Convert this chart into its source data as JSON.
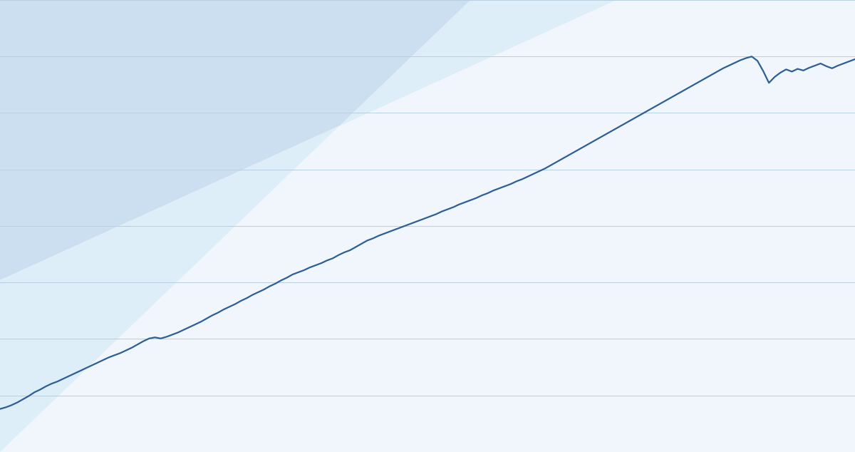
{
  "background_color": "#f0f6fc",
  "upper_triangle_color": "#ccdff0",
  "mid_band_color": "#ddeef8",
  "line_color": "#2d5f96",
  "line_width": 1.6,
  "grid_color": "#b8cfe0",
  "grid_linewidth": 0.7,
  "figsize": [
    12.0,
    6.34
  ],
  "dpi": 100,
  "y_values": [
    100.0,
    100.15,
    100.35,
    100.6,
    100.9,
    101.2,
    101.55,
    101.8,
    102.1,
    102.35,
    102.55,
    102.8,
    103.05,
    103.3,
    103.55,
    103.8,
    104.05,
    104.3,
    104.55,
    104.8,
    105.0,
    105.2,
    105.45,
    105.7,
    106.0,
    106.3,
    106.55,
    106.65,
    106.55,
    106.7,
    106.9,
    107.1,
    107.35,
    107.6,
    107.85,
    108.1,
    108.4,
    108.7,
    108.95,
    109.25,
    109.5,
    109.75,
    110.05,
    110.3,
    110.6,
    110.85,
    111.1,
    111.4,
    111.65,
    111.95,
    112.2,
    112.5,
    112.7,
    112.9,
    113.15,
    113.35,
    113.55,
    113.8,
    114.0,
    114.3,
    114.55,
    114.75,
    115.05,
    115.35,
    115.65,
    115.85,
    116.1,
    116.3,
    116.5,
    116.7,
    116.9,
    117.1,
    117.3,
    117.5,
    117.7,
    117.9,
    118.1,
    118.35,
    118.55,
    118.75,
    119.0,
    119.2,
    119.4,
    119.6,
    119.85,
    120.05,
    120.3,
    120.5,
    120.7,
    120.9,
    121.15,
    121.35,
    121.6,
    121.85,
    122.1,
    122.35,
    122.65,
    122.95,
    123.25,
    123.55,
    123.85,
    124.15,
    124.45,
    124.75,
    125.05,
    125.35,
    125.65,
    125.95,
    126.25,
    126.55,
    126.85,
    127.15,
    127.45,
    127.75,
    128.05,
    128.35,
    128.65,
    128.95,
    129.25,
    129.55,
    129.85,
    130.15,
    130.45,
    130.75,
    131.05,
    131.35,
    131.65,
    131.9,
    132.15,
    132.4,
    132.6,
    132.75,
    132.35,
    131.4,
    130.3,
    130.85,
    131.25,
    131.55,
    131.35,
    131.6,
    131.45,
    131.7,
    131.9,
    132.1,
    131.85,
    131.65,
    131.9,
    132.1,
    132.3,
    132.5
  ],
  "ylim_min": 96,
  "ylim_max": 138,
  "n_gridlines": 8
}
